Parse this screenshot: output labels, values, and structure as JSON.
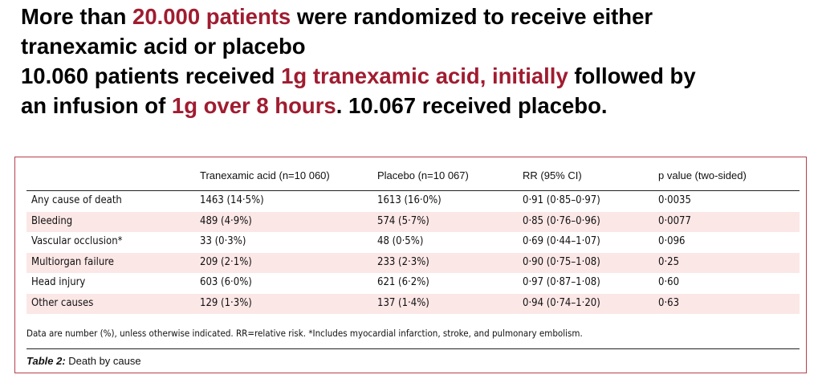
{
  "headline": {
    "line1_a": "More than ",
    "line1_hl": "20.000 patients",
    "line1_b": " were randomized to receive either",
    "line2": "tranexamic acid or placebo",
    "line3_a": "10.060 patients received ",
    "line3_hl": "1g tranexamic acid, initially",
    "line3_b": " followed by",
    "line4_a": "an infusion of ",
    "line4_hl": "1g over 8 hours",
    "line4_b": ". 10.067 received placebo."
  },
  "colors": {
    "highlight": "#a01c30",
    "row_shade": "#fbe7e6",
    "border": "#b4414e"
  },
  "table": {
    "headers": [
      "",
      "Tranexamic acid (n=10 060)",
      "Placebo (n=10 067)",
      "RR (95% CI)",
      "p value (two-sided)"
    ],
    "rows": [
      [
        "Any cause of death",
        "1463 (14·5%)",
        "1613 (16·0%)",
        "0·91 (0·85–0·97)",
        "0·0035"
      ],
      [
        "Bleeding",
        "489 (4·9%)",
        "574 (5·7%)",
        "0·85 (0·76–0·96)",
        "0·0077"
      ],
      [
        "Vascular occlusion*",
        "33 (0·3%)",
        "48 (0·5%)",
        "0·69 (0·44–1·07)",
        "0·096"
      ],
      [
        "Multiorgan failure",
        "209 (2·1%)",
        "233 (2·3%)",
        "0·90 (0·75–1·08)",
        "0·25"
      ],
      [
        "Head injury",
        "603 (6·0%)",
        "621 (6·2%)",
        "0·97 (0·87–1·08)",
        "0·60"
      ],
      [
        "Other causes",
        "129 (1·3%)",
        "137 (1·4%)",
        "0·94 (0·74–1·20)",
        "0·63"
      ]
    ],
    "footnote": "Data are number (%), unless otherwise indicated. RR=relative risk. *Includes myocardial infarction, stroke, and pulmonary embolism.",
    "caption_label": "Table 2:",
    "caption_text": " Death by cause"
  }
}
